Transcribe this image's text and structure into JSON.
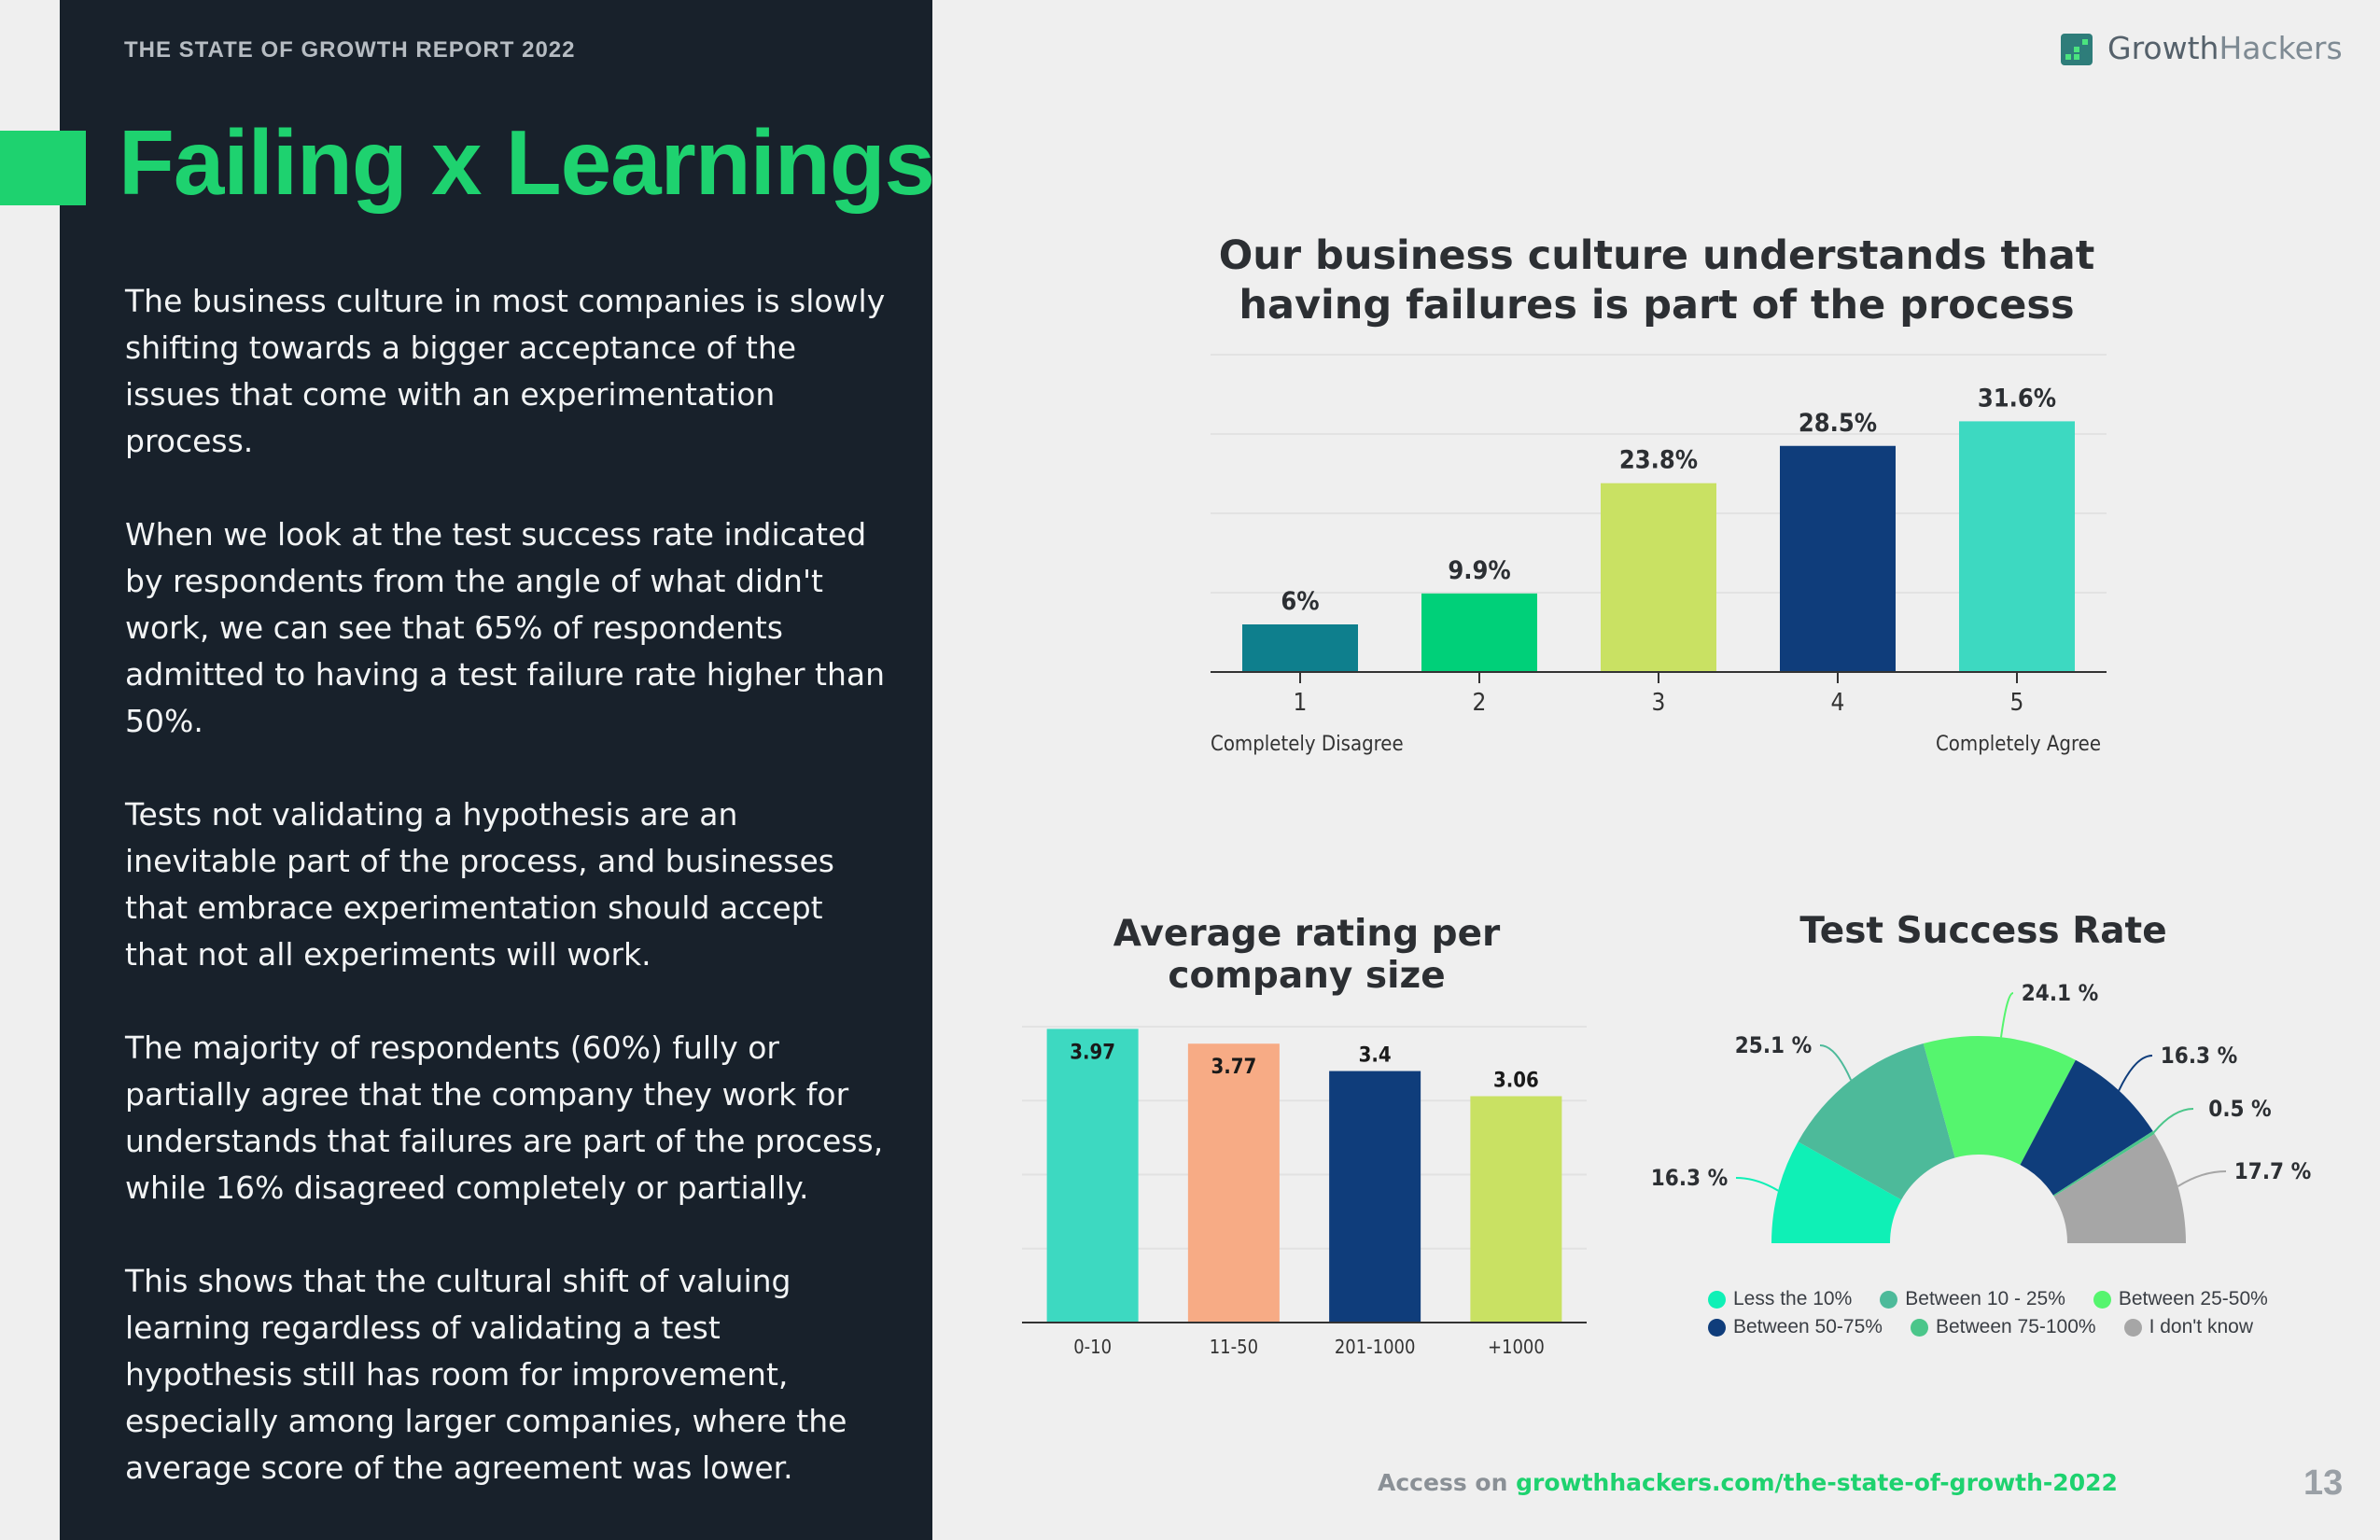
{
  "header": {
    "report_label": "THE STATE OF GROWTH REPORT 2022",
    "title": "Failing x Learnings"
  },
  "logo": {
    "word1": "Growth",
    "word2": "Hackers"
  },
  "body": {
    "paragraphs": [
      "The business culture in most companies is slowly shifting towards a bigger acceptance of the issues that come with an experimentation process.",
      "When we look at the test success rate indicated by respondents from the angle of what didn't work, we can see that 65% of respondents admitted to having a test failure rate higher than 50%.",
      "Tests not validating a hypothesis are an inevitable part of the process, and businesses that embrace experimentation should accept that not all experiments will work.",
      "The majority of respondents (60%) fully or partially agree that the company they work for understands that failures are part of the process, while 16% disagreed completely or partially.",
      "This shows that the cultural shift of valuing learning regardless of validating a test hypothesis still has room for improvement, especially among larger companies, where the average score of the agreement was lower."
    ]
  },
  "chart_data": [
    {
      "type": "bar",
      "title": "Our business culture understands that having failures is part of the process",
      "categories": [
        "1",
        "2",
        "3",
        "4",
        "5"
      ],
      "values": [
        6,
        9.9,
        23.8,
        28.5,
        31.6
      ],
      "value_labels": [
        "6%",
        "9.9%",
        "23.8%",
        "28.5%",
        "31.6%"
      ],
      "colors": [
        "#0e7f8d",
        "#00d079",
        "#c9e163",
        "#0f3d7b",
        "#3dd9c1"
      ],
      "annotations": {
        "left": "Completely Disagree",
        "right": "Completely Agree"
      },
      "ylim": [
        0,
        40
      ],
      "grid": true
    },
    {
      "type": "bar",
      "title": "Average rating per company size",
      "categories": [
        "0-10",
        "11-50",
        "201-1000",
        "+1000"
      ],
      "values": [
        3.97,
        3.77,
        3.4,
        3.06
      ],
      "value_labels": [
        "3.97",
        "3.77",
        "3.4",
        "3.06"
      ],
      "colors": [
        "#3dd9c1",
        "#f7ab85",
        "#0f3d7b",
        "#c9e163"
      ],
      "ylim": [
        0,
        4
      ],
      "grid": true
    },
    {
      "type": "pie",
      "title": "Test Success Rate",
      "labels": [
        "Less the 10%",
        "Between 10 - 25%",
        "Between 25-50%",
        "Between 50-75%",
        "Between 75-100%",
        "I don't know"
      ],
      "values": [
        16.3,
        25.1,
        24.1,
        16.3,
        0.5,
        17.7
      ],
      "value_labels": [
        "16.3 %",
        "25.1 %",
        "24.1 %",
        "16.3 %",
        "0.5 %",
        "17.7 %"
      ],
      "colors": [
        "#0ff0b6",
        "#4dba9a",
        "#55f56e",
        "#0f3d7b",
        "#4bc68a",
        "#a6a6a6"
      ],
      "legend_position": "bottom"
    }
  ],
  "footer": {
    "access_prefix": "Access on",
    "link": "growthhackers.com/the-state-of-growth-2022",
    "page_number": "13"
  }
}
